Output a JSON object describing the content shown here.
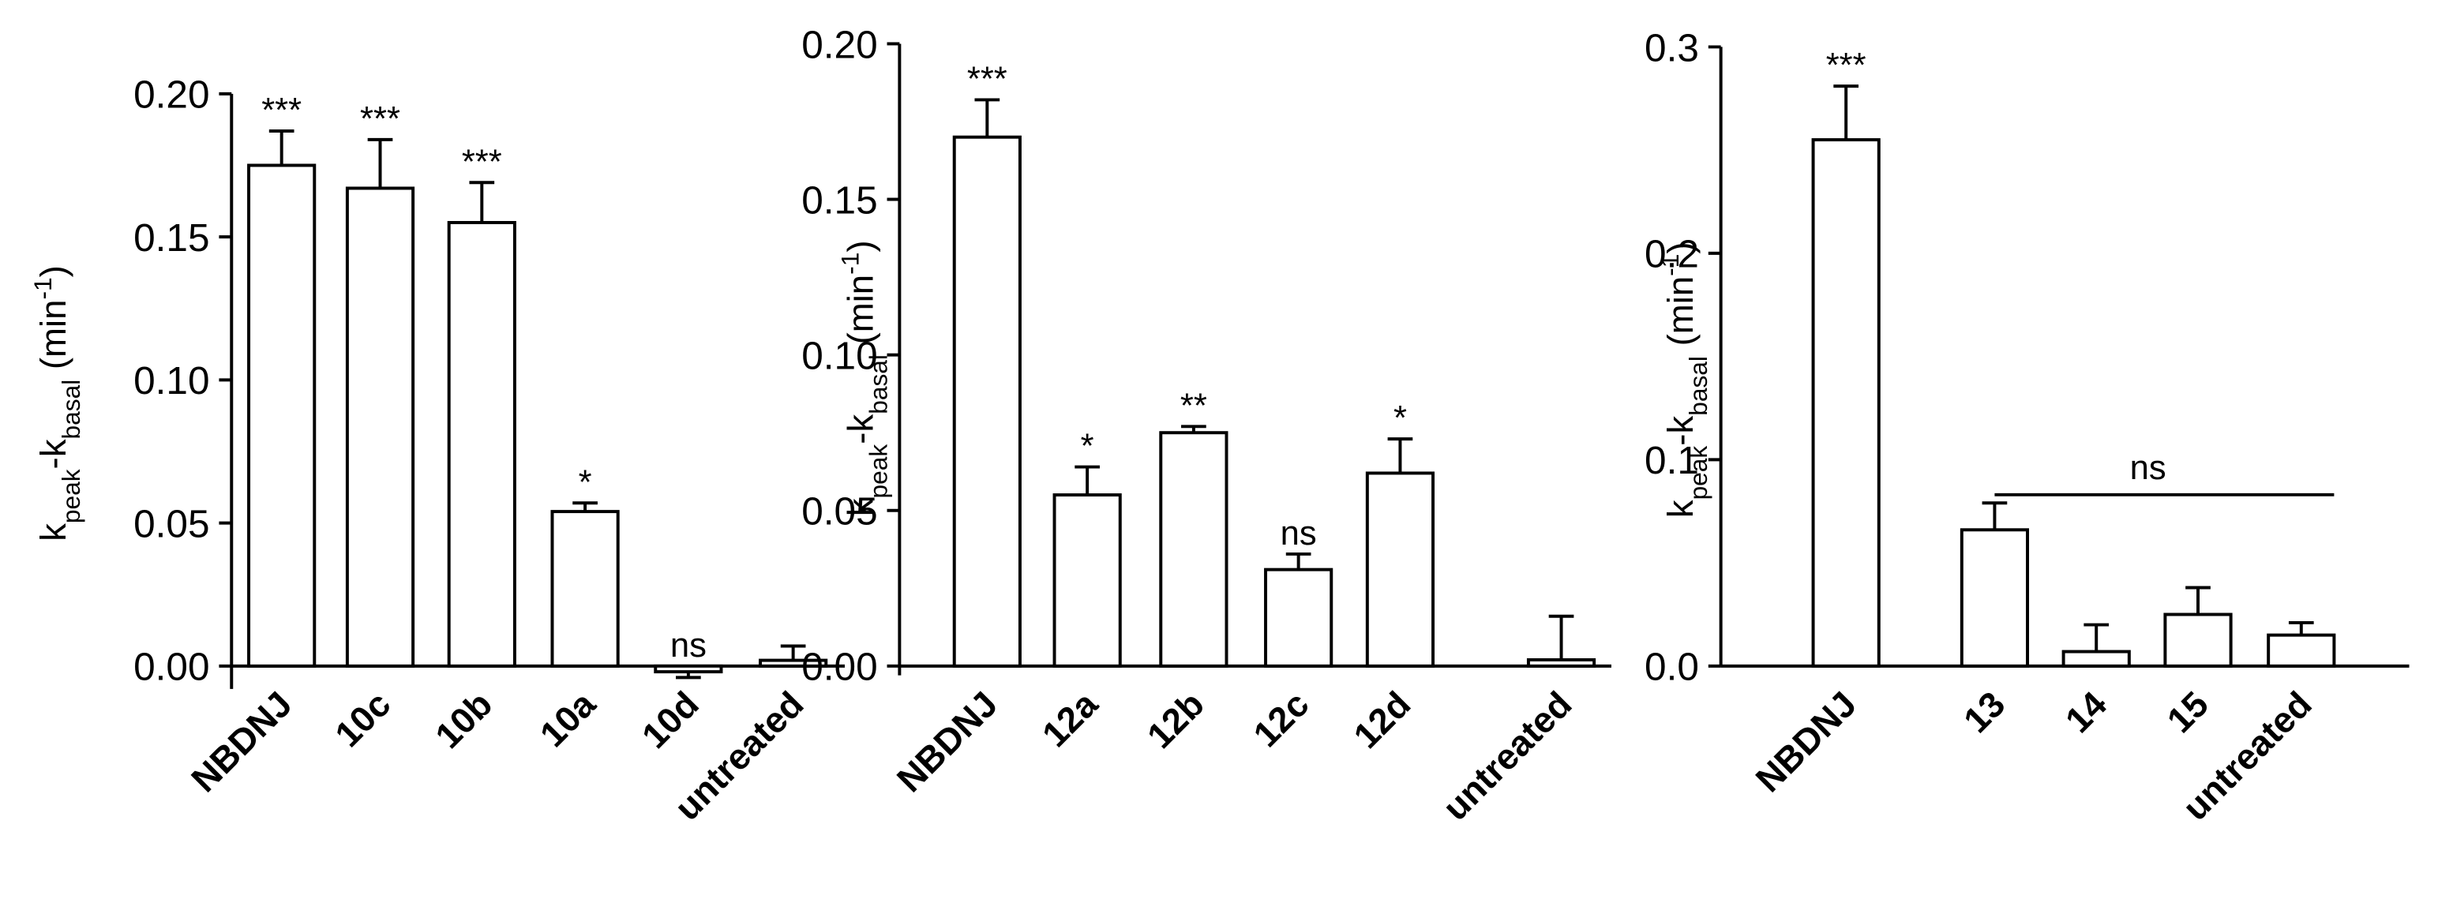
{
  "chart_data": [
    {
      "type": "bar",
      "ylabel": [
        {
          "text": "k"
        },
        {
          "text": "peak",
          "shift": "sub"
        },
        {
          "text": "-k"
        },
        {
          "text": "basal",
          "shift": "sub"
        },
        {
          "text": " (min"
        },
        {
          "text": "-1",
          "shift": "sup"
        },
        {
          "text": ")"
        }
      ],
      "categories": [
        "NBDNJ",
        "10c",
        "10b",
        "10a",
        "10d",
        "untreated"
      ],
      "values": [
        0.175,
        0.167,
        0.155,
        0.054,
        -0.002,
        0.002
      ],
      "errors": [
        0.012,
        0.017,
        0.014,
        0.003,
        0.002,
        0.005
      ],
      "annotations": [
        "***",
        "***",
        "***",
        "*",
        "ns",
        null
      ],
      "color": "#ffffff",
      "edgecolor": "#000000",
      "ylim": [
        -0.008,
        0.2
      ],
      "yticks": [
        {
          "value": 0,
          "label": "0.00"
        },
        {
          "value": 0.05,
          "label": "0.05"
        },
        {
          "value": 0.1,
          "label": "0.10"
        },
        {
          "value": 0.15,
          "label": "0.15"
        },
        {
          "value": 0.2,
          "label": "0.20"
        }
      ]
    },
    {
      "type": "bar",
      "ylabel": [
        {
          "text": "k"
        },
        {
          "text": "peak",
          "shift": "sub"
        },
        {
          "text": "-k"
        },
        {
          "text": "basal",
          "shift": "sub"
        },
        {
          "text": " (min"
        },
        {
          "text": "-1",
          "shift": "sup"
        },
        {
          "text": ")"
        }
      ],
      "categories": [
        "NBDNJ",
        "12a",
        "12b",
        "12c",
        "12d",
        "untreated"
      ],
      "values": [
        0.17,
        0.055,
        0.075,
        0.031,
        0.062,
        0.002
      ],
      "errors": [
        0.012,
        0.009,
        0.002,
        0.005,
        0.011,
        0.014
      ],
      "annotations": [
        "***",
        "*",
        "**",
        "ns",
        "*",
        null
      ],
      "color": "#ffffff",
      "edgecolor": "#000000",
      "ylim": [
        -0.003,
        0.2
      ],
      "yticks": [
        {
          "value": 0,
          "label": "0.00"
        },
        {
          "value": 0.05,
          "label": "0.05"
        },
        {
          "value": 0.1,
          "label": "0.10"
        },
        {
          "value": 0.15,
          "label": "0.15"
        },
        {
          "value": 0.2,
          "label": "0.20"
        }
      ]
    },
    {
      "type": "bar",
      "ylabel": [
        {
          "text": "k"
        },
        {
          "text": "peak",
          "shift": "sub"
        },
        {
          "text": "-k"
        },
        {
          "text": "basal",
          "shift": "sub"
        },
        {
          "text": " (min"
        },
        {
          "text": "-1",
          "shift": "sup"
        },
        {
          "text": ")"
        }
      ],
      "categories": [
        "NBDNJ",
        "13",
        "14",
        "15",
        "untreated"
      ],
      "values": [
        0.255,
        0.066,
        0.007,
        0.025,
        0.015
      ],
      "errors": [
        0.026,
        0.013,
        0.013,
        0.013,
        0.006
      ],
      "annotations": [
        "***",
        null,
        null,
        null,
        null
      ],
      "bracket": {
        "text": "ns",
        "from": "13",
        "to": "untreated",
        "value": 0.083
      },
      "color": "#ffffff",
      "edgecolor": "#000000",
      "ylim": [
        0,
        0.3
      ],
      "yticks": [
        {
          "value": 0,
          "label": "0.0"
        },
        {
          "value": 0.1,
          "label": "0.1"
        },
        {
          "value": 0.2,
          "label": "0.2"
        },
        {
          "value": 0.3,
          "label": "0.3"
        }
      ]
    }
  ]
}
